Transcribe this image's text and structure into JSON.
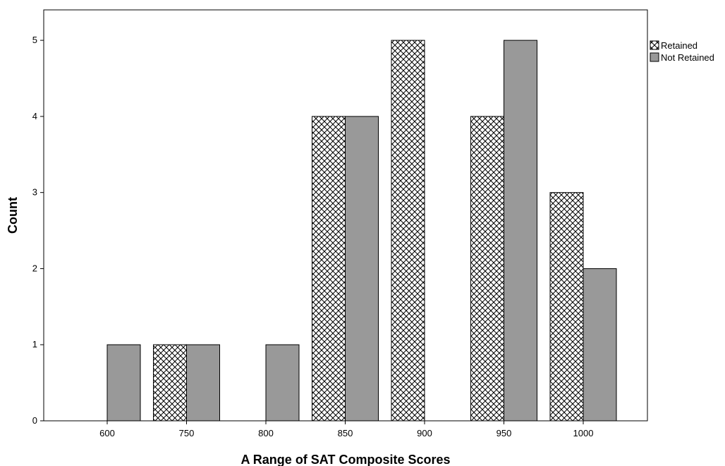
{
  "chart_data": {
    "type": "bar",
    "title": "",
    "xlabel": "A Range of SAT Composite Scores",
    "ylabel": "Count",
    "categories": [
      "600",
      "750",
      "800",
      "850",
      "900",
      "950",
      "1000"
    ],
    "series": [
      {
        "name": "Retained",
        "values": [
          0,
          1,
          0,
          4,
          5,
          4,
          3
        ],
        "pattern": "crosshatch",
        "color": "#ffffff"
      },
      {
        "name": "Not Retained",
        "values": [
          1,
          1,
          1,
          4,
          0,
          5,
          2
        ],
        "pattern": "solid",
        "color": "#999999"
      }
    ],
    "ylim": [
      0,
      5.4
    ],
    "yticks": [
      0,
      1,
      2,
      3,
      4,
      5
    ],
    "grid": false,
    "legend": "top-right"
  }
}
